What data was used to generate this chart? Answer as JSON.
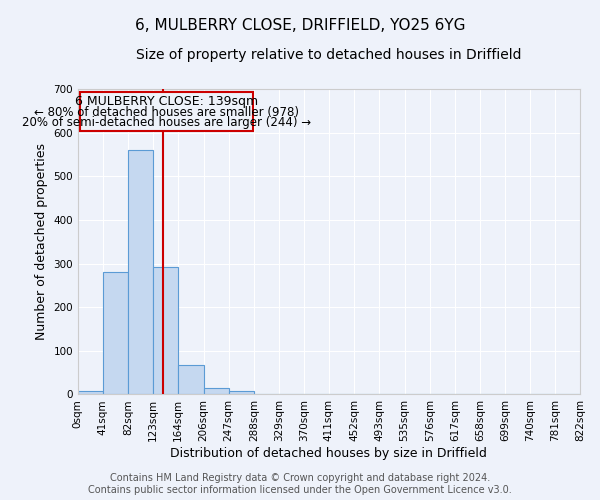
{
  "title": "6, MULBERRY CLOSE, DRIFFIELD, YO25 6YG",
  "subtitle": "Size of property relative to detached houses in Driffield",
  "xlabel": "Distribution of detached houses by size in Driffield",
  "ylabel": "Number of detached properties",
  "bar_edges": [
    0,
    41,
    82,
    123,
    164,
    206,
    247,
    288,
    329,
    370,
    411,
    452,
    493,
    535,
    576,
    617,
    658,
    699,
    740,
    781,
    822
  ],
  "bar_heights": [
    7,
    280,
    560,
    293,
    68,
    14,
    9,
    0,
    0,
    0,
    0,
    0,
    0,
    0,
    0,
    0,
    0,
    0,
    0,
    0
  ],
  "bar_color": "#c5d8f0",
  "bar_edge_color": "#5b9bd5",
  "vline_x": 139,
  "vline_color": "#cc0000",
  "ylim": [
    0,
    700
  ],
  "yticks": [
    0,
    100,
    200,
    300,
    400,
    500,
    600,
    700
  ],
  "xtick_labels": [
    "0sqm",
    "41sqm",
    "82sqm",
    "123sqm",
    "164sqm",
    "206sqm",
    "247sqm",
    "288sqm",
    "329sqm",
    "370sqm",
    "411sqm",
    "452sqm",
    "493sqm",
    "535sqm",
    "576sqm",
    "617sqm",
    "658sqm",
    "699sqm",
    "740sqm",
    "781sqm",
    "822sqm"
  ],
  "annotation_line1": "6 MULBERRY CLOSE: 139sqm",
  "annotation_line2": "← 80% of detached houses are smaller (978)",
  "annotation_line3": "20% of semi-detached houses are larger (244) →",
  "footer_line1": "Contains HM Land Registry data © Crown copyright and database right 2024.",
  "footer_line2": "Contains public sector information licensed under the Open Government Licence v3.0.",
  "bg_color": "#eef2fa",
  "grid_color": "#ffffff",
  "title_fontsize": 11,
  "subtitle_fontsize": 10,
  "axis_label_fontsize": 9,
  "tick_fontsize": 7.5,
  "annotation_fontsize": 9,
  "footer_fontsize": 7
}
